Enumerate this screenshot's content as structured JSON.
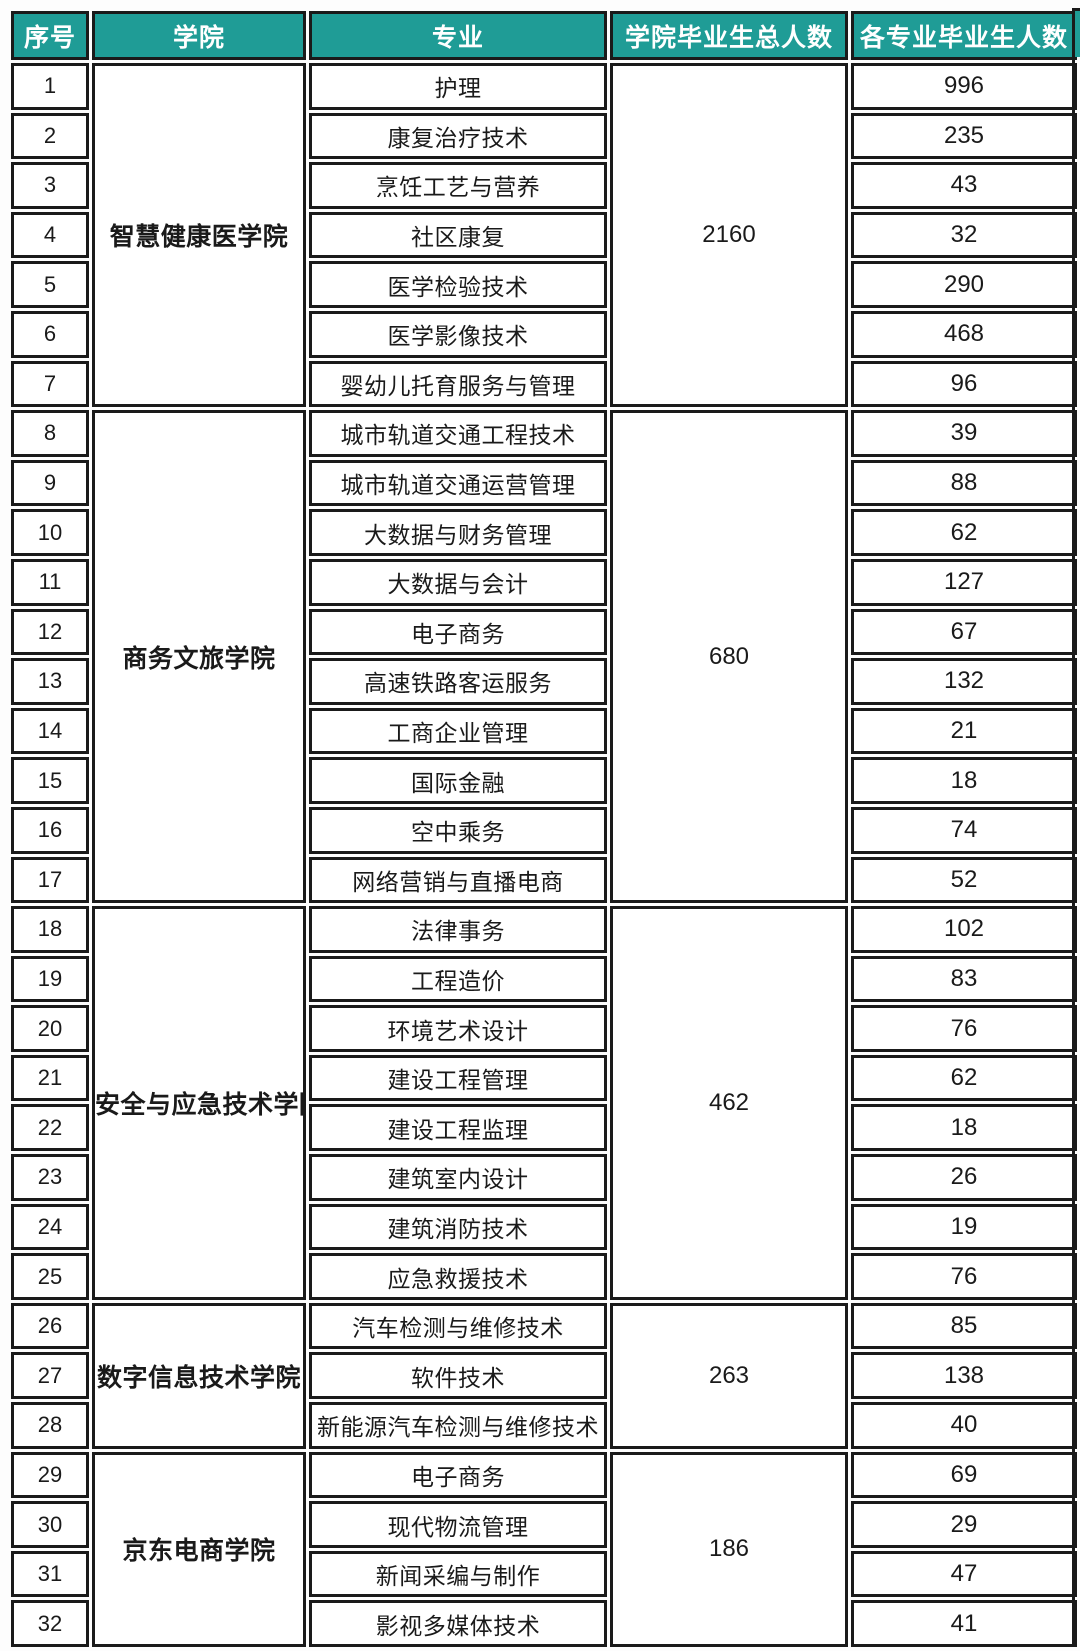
{
  "colors": {
    "header_bg": "#1f9c96",
    "header_text": "#ffffff",
    "border": "#1a1a1a",
    "text": "#1a1a1a"
  },
  "table": {
    "columns": [
      {
        "label": "序号"
      },
      {
        "label": "学院"
      },
      {
        "label": "专业"
      },
      {
        "label": "学院毕业生总人数"
      },
      {
        "label": "各专业毕业生人数"
      }
    ],
    "sections": [
      {
        "college": "智慧健康医学院",
        "total": 2160,
        "rows": [
          {
            "no": 1,
            "major": "护理",
            "count": 996
          },
          {
            "no": 2,
            "major": "康复治疗技术",
            "count": 235
          },
          {
            "no": 3,
            "major": "烹饪工艺与营养",
            "count": 43
          },
          {
            "no": 4,
            "major": "社区康复",
            "count": 32
          },
          {
            "no": 5,
            "major": "医学检验技术",
            "count": 290
          },
          {
            "no": 6,
            "major": "医学影像技术",
            "count": 468
          },
          {
            "no": 7,
            "major": "婴幼儿托育服务与管理",
            "count": 96
          }
        ]
      },
      {
        "college": "商务文旅学院",
        "total": 680,
        "rows": [
          {
            "no": 8,
            "major": "城市轨道交通工程技术",
            "count": 39
          },
          {
            "no": 9,
            "major": "城市轨道交通运营管理",
            "count": 88
          },
          {
            "no": 10,
            "major": "大数据与财务管理",
            "count": 62
          },
          {
            "no": 11,
            "major": "大数据与会计",
            "count": 127
          },
          {
            "no": 12,
            "major": "电子商务",
            "count": 67
          },
          {
            "no": 13,
            "major": "高速铁路客运服务",
            "count": 132
          },
          {
            "no": 14,
            "major": "工商企业管理",
            "count": 21
          },
          {
            "no": 15,
            "major": "国际金融",
            "count": 18
          },
          {
            "no": 16,
            "major": "空中乘务",
            "count": 74
          },
          {
            "no": 17,
            "major": "网络营销与直播电商",
            "count": 52
          }
        ]
      },
      {
        "college": "安全与应急技术学院",
        "total": 462,
        "rows": [
          {
            "no": 18,
            "major": "法律事务",
            "count": 102
          },
          {
            "no": 19,
            "major": "工程造价",
            "count": 83
          },
          {
            "no": 20,
            "major": "环境艺术设计",
            "count": 76
          },
          {
            "no": 21,
            "major": "建设工程管理",
            "count": 62
          },
          {
            "no": 22,
            "major": "建设工程监理",
            "count": 18
          },
          {
            "no": 23,
            "major": "建筑室内设计",
            "count": 26
          },
          {
            "no": 24,
            "major": "建筑消防技术",
            "count": 19
          },
          {
            "no": 25,
            "major": "应急救援技术",
            "count": 76
          }
        ]
      },
      {
        "college": "数字信息技术学院",
        "total": 263,
        "rows": [
          {
            "no": 26,
            "major": "汽车检测与维修技术",
            "count": 85
          },
          {
            "no": 27,
            "major": "软件技术",
            "count": 138
          },
          {
            "no": 28,
            "major": "新能源汽车检测与维修技术",
            "count": 40
          }
        ]
      },
      {
        "college": "京东电商学院",
        "total": 186,
        "rows": [
          {
            "no": 29,
            "major": "电子商务",
            "count": 69
          },
          {
            "no": 30,
            "major": "现代物流管理",
            "count": 29
          },
          {
            "no": 31,
            "major": "新闻采编与制作",
            "count": 47
          },
          {
            "no": 32,
            "major": "影视多媒体技术",
            "count": 41
          }
        ]
      }
    ]
  }
}
